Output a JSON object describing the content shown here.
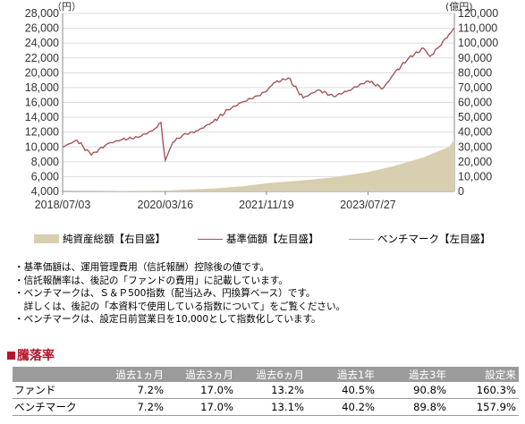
{
  "chart_data": {
    "type": "line",
    "left_axis_unit": "（円）",
    "right_axis_unit": "(億円)",
    "y_left": {
      "min": 4000,
      "max": 28000,
      "ticks": [
        "28,000",
        "26,000",
        "24,000",
        "22,000",
        "20,000",
        "18,000",
        "16,000",
        "14,000",
        "12,000",
        "10,000",
        "8,000",
        "6,000",
        "4,000"
      ]
    },
    "y_right": {
      "min": 0,
      "max": 120000,
      "ticks": [
        "120,000",
        "110,000",
        "100,000",
        "90,000",
        "80,000",
        "70,000",
        "60,000",
        "50,000",
        "40,000",
        "30,000",
        "20,000",
        "10,000",
        "0"
      ]
    },
    "x_ticks": [
      "2018/07/03",
      "2020/03/16",
      "2021/11/19",
      "2023/07/27"
    ],
    "x_range": [
      "2018/07/03",
      "2024/12/31"
    ],
    "grid": true,
    "legend_position": "bottom",
    "colors": {
      "fund": "#a85255",
      "benchmark": "#a6a6a6",
      "assets": "#d8ceb0"
    },
    "series": [
      {
        "name": "基準価額【左目盛】",
        "axis": "left",
        "points": [
          [
            "2018/07/03",
            10000
          ],
          [
            "2018/09/28",
            10900
          ],
          [
            "2018/12/24",
            8900
          ],
          [
            "2019/03/29",
            10400
          ],
          [
            "2019/06/28",
            11000
          ],
          [
            "2019/09/30",
            11300
          ],
          [
            "2019/12/31",
            12200
          ],
          [
            "2020/02/19",
            13300
          ],
          [
            "2020/03/16",
            8200
          ],
          [
            "2020/04/30",
            10600
          ],
          [
            "2020/06/30",
            11600
          ],
          [
            "2020/09/30",
            12200
          ],
          [
            "2020/12/31",
            13400
          ],
          [
            "2021/03/31",
            15000
          ],
          [
            "2021/06/30",
            16100
          ],
          [
            "2021/09/30",
            16900
          ],
          [
            "2021/11/19",
            17500
          ],
          [
            "2021/12/31",
            18600
          ],
          [
            "2022/03/31",
            19300
          ],
          [
            "2022/06/30",
            16600
          ],
          [
            "2022/09/30",
            17700
          ],
          [
            "2022/12/30",
            16800
          ],
          [
            "2023/03/31",
            17600
          ],
          [
            "2023/07/27",
            18900
          ],
          [
            "2023/10/27",
            17900
          ],
          [
            "2023/12/29",
            19800
          ],
          [
            "2024/03/29",
            22000
          ],
          [
            "2024/06/28",
            23300
          ],
          [
            "2024/08/05",
            22200
          ],
          [
            "2024/09/30",
            23500
          ],
          [
            "2024/11/29",
            25200
          ],
          [
            "2024/12/31",
            26000
          ]
        ]
      },
      {
        "name": "ベンチマーク【左目盛】",
        "axis": "left",
        "points": [
          [
            "2018/07/03",
            10000
          ],
          [
            "2018/09/28",
            10900
          ],
          [
            "2018/12/24",
            8900
          ],
          [
            "2019/03/29",
            10400
          ],
          [
            "2019/06/28",
            11000
          ],
          [
            "2019/09/30",
            11300
          ],
          [
            "2019/12/31",
            12200
          ],
          [
            "2020/02/19",
            13300
          ],
          [
            "2020/03/16",
            8200
          ],
          [
            "2020/04/30",
            10600
          ],
          [
            "2020/06/30",
            11600
          ],
          [
            "2020/09/30",
            12200
          ],
          [
            "2020/12/31",
            13400
          ],
          [
            "2021/03/31",
            15000
          ],
          [
            "2021/06/30",
            16100
          ],
          [
            "2021/09/30",
            16900
          ],
          [
            "2021/11/19",
            17500
          ],
          [
            "2021/12/31",
            18600
          ],
          [
            "2022/03/31",
            19300
          ],
          [
            "2022/06/30",
            16600
          ],
          [
            "2022/09/30",
            17700
          ],
          [
            "2022/12/30",
            16800
          ],
          [
            "2023/03/31",
            17600
          ],
          [
            "2023/07/27",
            18900
          ],
          [
            "2023/10/27",
            17900
          ],
          [
            "2023/12/29",
            19800
          ],
          [
            "2024/03/29",
            22000
          ],
          [
            "2024/06/28",
            23300
          ],
          [
            "2024/08/05",
            22200
          ],
          [
            "2024/09/30",
            23500
          ],
          [
            "2024/11/29",
            25200
          ],
          [
            "2024/12/31",
            26000
          ]
        ]
      },
      {
        "name": "純資産総額【右目盛】",
        "axis": "right",
        "type": "area",
        "points": [
          [
            "2018/07/03",
            0
          ],
          [
            "2019/06/28",
            300
          ],
          [
            "2020/03/16",
            600
          ],
          [
            "2020/12/31",
            2000
          ],
          [
            "2021/06/30",
            3500
          ],
          [
            "2021/11/19",
            5500
          ],
          [
            "2022/06/30",
            7500
          ],
          [
            "2022/12/30",
            9500
          ],
          [
            "2023/07/27",
            13000
          ],
          [
            "2023/12/29",
            17000
          ],
          [
            "2024/06/28",
            23000
          ],
          [
            "2024/11/29",
            30000
          ],
          [
            "2024/12/31",
            35000
          ]
        ]
      }
    ]
  },
  "legend": {
    "assets": "純資産総額【右目盛】",
    "nav": "基準価額【左目盛】",
    "benchmark": "ベンチマーク【左目盛】"
  },
  "notes": [
    "・基準価額は、運用管理費用（信託報酬）控除後の値です。",
    "・信託報酬率は、後記の「ファンドの費用」に記載しています。",
    "・ベンチマークは、Ｓ＆Ｐ500指数（配当込み、円換算ベース）です。",
    "　詳しくは、後記の「本資料で使用している指数について」をご覧ください。",
    "・ベンチマークは、設定日前営業日を10,000として指数化しています。"
  ],
  "performance": {
    "title": "騰落率",
    "columns": [
      "過去1ヵ月",
      "過去3ヵ月",
      "過去6ヵ月",
      "過去1年",
      "過去3年",
      "設定来"
    ],
    "rows": [
      {
        "label": "ファンド",
        "values": [
          "7.2%",
          "17.0%",
          "13.2%",
          "40.5%",
          "90.8%",
          "160.3%"
        ]
      },
      {
        "label": "ベンチマーク",
        "values": [
          "7.2%",
          "17.0%",
          "13.1%",
          "40.2%",
          "89.8%",
          "157.9%"
        ]
      }
    ]
  }
}
